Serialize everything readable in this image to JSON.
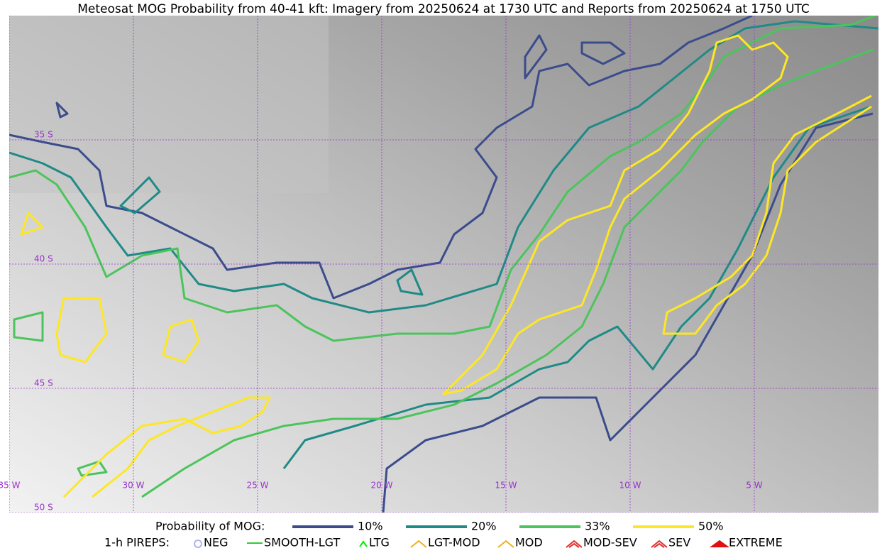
{
  "title": "Meteosat MOG Probability from 40-41 kft: Imagery from 20250624 at 1730 UTC and Reports from 20250624 at 1750 UTC",
  "map": {
    "lon_labels": [
      "35 W",
      "30 W",
      "25 W",
      "20 W",
      "15 W",
      "10 W",
      "5 W"
    ],
    "lat_labels": [
      "35 S",
      "40 S",
      "45 S",
      "50 S"
    ]
  },
  "legend": {
    "probability": {
      "label": "Probability of MOG:",
      "items": [
        {
          "label": "10%",
          "color": "#3b4c8c"
        },
        {
          "label": "20%",
          "color": "#1f8a86"
        },
        {
          "label": "33%",
          "color": "#4cc45c"
        },
        {
          "label": "50%",
          "color": "#fde725"
        }
      ]
    },
    "pireps": {
      "label": "1-h PIREPS:",
      "items": [
        {
          "label": "NEG",
          "color": "#b0b0f0"
        },
        {
          "label": "SMOOTH-LGT",
          "color": "#33cc33"
        },
        {
          "label": "LTG",
          "color": "#00ee00"
        },
        {
          "label": "LGT-MOD",
          "color": "#f0b020"
        },
        {
          "label": "MOD",
          "color": "#f0b020"
        },
        {
          "label": "MOD-SEV",
          "color": "#e03030"
        },
        {
          "label": "SEV",
          "color": "#e03030"
        },
        {
          "label": "EXTREME",
          "color": "#e01010"
        }
      ]
    }
  }
}
